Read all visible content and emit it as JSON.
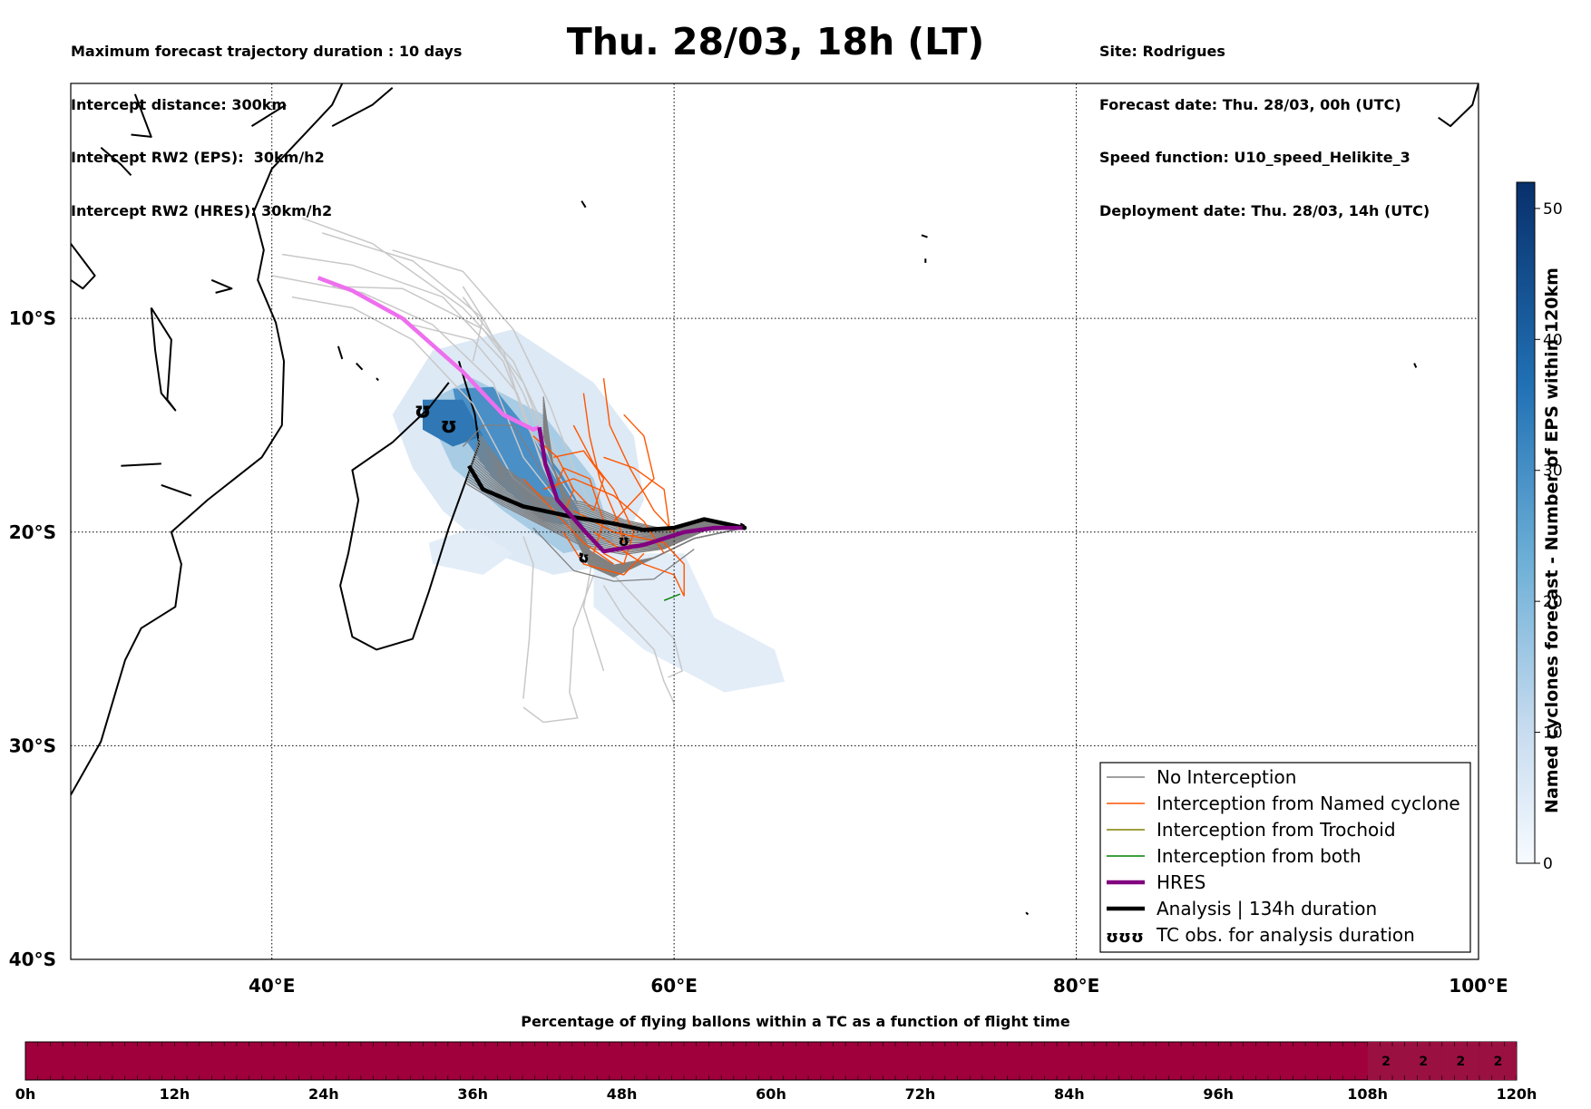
{
  "header": {
    "left_lines": [
      "Maximum forecast trajectory duration : 10 days",
      "Intercept distance: 300km",
      "Intercept RW2 (EPS):  30km/h2",
      "Intercept RW2 (HRES): 30km/h2"
    ],
    "title": "Thu. 28/03, 18h (LT)",
    "right_lines": [
      "Site: Rodrigues",
      "Forecast date: Thu. 28/03, 00h (UTC)",
      "Speed function: U10_speed_Helikite_3",
      "Deployment date: Thu. 28/03, 14h (UTC)"
    ]
  },
  "map": {
    "lon_range": [
      30,
      100
    ],
    "lat_range": [
      -40,
      1
    ],
    "lon_ticks": [
      {
        "value": 40,
        "label": "40°E"
      },
      {
        "value": 60,
        "label": "60°E"
      },
      {
        "value": 80,
        "label": "80°E"
      },
      {
        "value": 100,
        "label": "100°E"
      }
    ],
    "lat_ticks": [
      {
        "value": -10,
        "label": "10°S"
      },
      {
        "value": -20,
        "label": "20°S"
      },
      {
        "value": -30,
        "label": "30°S"
      },
      {
        "value": -40,
        "label": "40°S"
      }
    ],
    "grid": "dotted",
    "colors": {
      "no_interception": "#808080",
      "named_cyclone": "#ff5500",
      "trochoid": "#808000",
      "both": "#008000",
      "hres": "#800080",
      "hres_early": "#ee6fee",
      "analysis": "#000000",
      "ensemble_light": "#c8c8c8"
    }
  },
  "legend": {
    "position": "lower-right",
    "items": [
      {
        "label": "No Interception",
        "color": "#808080",
        "style": "thin"
      },
      {
        "label": "Interception from Named cyclone",
        "color": "#ff5500",
        "style": "thin"
      },
      {
        "label": "Interception from Trochoid",
        "color": "#808000",
        "style": "thin"
      },
      {
        "label": "Interception from both",
        "color": "#008000",
        "style": "thin"
      },
      {
        "label": "HRES",
        "color": "#800080",
        "style": "thick"
      },
      {
        "label": "Analysis | 134h duration",
        "color": "#000000",
        "style": "thick"
      },
      {
        "label": "TC obs. for analysis duration",
        "color": "#000000",
        "style": "symbol",
        "symbol": "ʊʊʊ"
      }
    ]
  },
  "colorbar": {
    "label": "Named cyclones forecast - Number of EPS within 120km",
    "range": [
      0,
      52
    ],
    "ticks": [
      0,
      10,
      20,
      30,
      40,
      50
    ],
    "colormap": "Blues"
  },
  "bottom_bar": {
    "title": "Percentage of flying ballons within a TC as a function of flight time",
    "ticks": [
      "0h",
      "12h",
      "24h",
      "36h",
      "48h",
      "60h",
      "72h",
      "84h",
      "96h",
      "108h",
      "120h"
    ],
    "range_h": [
      0,
      120
    ],
    "main_color": "#a0003c",
    "cells_labeled": [
      {
        "from_h": 108,
        "to_h": 111,
        "value": "2"
      },
      {
        "from_h": 111,
        "to_h": 114,
        "value": "2"
      },
      {
        "from_h": 114,
        "to_h": 117,
        "value": "2"
      },
      {
        "from_h": 117,
        "to_h": 120,
        "value": "2"
      }
    ],
    "labeled_color": "#9a1040"
  },
  "tracks": {
    "hres_early": [
      [
        42.3,
        -8.1
      ],
      [
        44,
        -8.7
      ],
      [
        46.5,
        -10
      ],
      [
        49.5,
        -12.5
      ],
      [
        51.5,
        -14.5
      ],
      [
        53,
        -15.2
      ],
      [
        53.3,
        -15.1
      ]
    ],
    "hres": [
      [
        53.3,
        -15.1
      ],
      [
        53.6,
        -16.8
      ],
      [
        54.2,
        -18.5
      ],
      [
        55.5,
        -19.9
      ],
      [
        56.5,
        -20.9
      ],
      [
        58.5,
        -20.6
      ],
      [
        60.5,
        -20
      ],
      [
        62,
        -19.8
      ],
      [
        63.5,
        -19.8
      ]
    ],
    "analysis": [
      [
        49.8,
        -16.9
      ],
      [
        50.5,
        -18
      ],
      [
        52.5,
        -18.8
      ],
      [
        55,
        -19.3
      ],
      [
        57,
        -19.6
      ],
      [
        58.5,
        -19.9
      ],
      [
        60,
        -19.8
      ],
      [
        61.5,
        -19.4
      ],
      [
        63.5,
        -19.8
      ]
    ],
    "green": [
      [
        59.5,
        -23.2
      ],
      [
        60.3,
        -22.9
      ]
    ]
  },
  "tc_obs": [
    [
      47.5,
      -14.3
    ],
    [
      48.8,
      -15
    ],
    [
      55.5,
      -21.1
    ],
    [
      57.5,
      -20.3
    ]
  ]
}
